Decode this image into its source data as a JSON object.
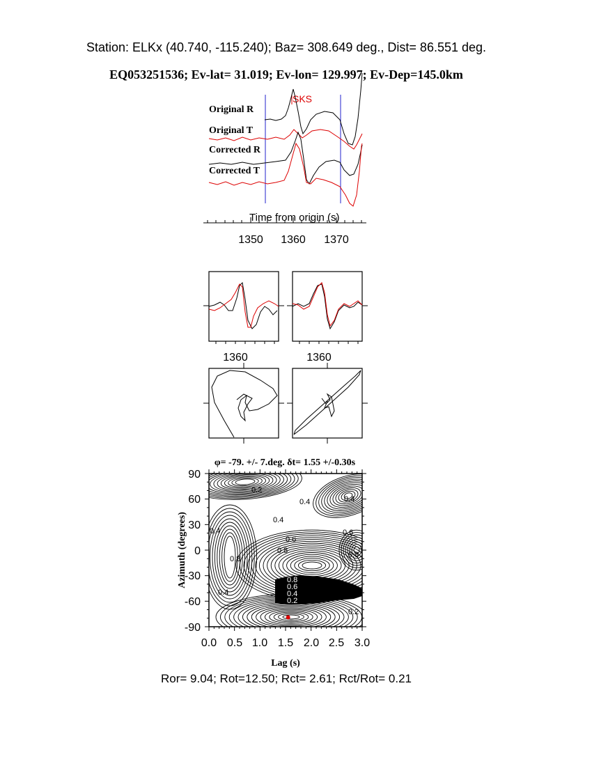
{
  "header": {
    "line1": "Station: ELKx (40.740, -115.240); Baz=  308.649 deg., Dist=   86.551 deg.",
    "line2": "EQ053251536; Ev-lat=  31.019; Ev-lon= 129.997; Ev-Dep=145.0km"
  },
  "footer": {
    "text": "Ror= 9.04; Rot=12.50; Rct= 2.61; Rct/Rot= 0.21"
  },
  "colors": {
    "radial": "#000000",
    "transverse": "#dd0000",
    "window": "#2222cc",
    "phase": "#dd0000",
    "best_fit_marker": "#dd0000"
  },
  "chart_data": [
    {
      "type": "line",
      "panel": "waveforms",
      "phase_label": "SKS",
      "trace_labels": [
        "Original R",
        "Original T",
        "Corrected R",
        "Corrected T"
      ],
      "xlabel": "Time from origin (s)",
      "x_ticks": [
        "1350",
        "1360",
        "1370"
      ],
      "xlim": [
        1340,
        1378
      ],
      "analysis_window": [
        1353.5,
        1371.5
      ],
      "phase_time": 1360.8
    },
    {
      "type": "line",
      "panel": "component-comparison",
      "subplots": [
        {
          "name": "original",
          "x_tick": "1360"
        },
        {
          "name": "corrected",
          "x_tick": "1360"
        }
      ]
    },
    {
      "type": "scatter",
      "panel": "particle-motion",
      "subplots": [
        {
          "name": "original"
        },
        {
          "name": "corrected"
        }
      ]
    },
    {
      "type": "heatmap",
      "panel": "splitting-grid",
      "title": "φ= -79. +/- 7.deg. δt= 1.55 +/-0.30s",
      "xlabel": "Lag (s)",
      "ylabel": "Azimuth (degrees)",
      "x_ticks": [
        "0.0",
        "0.5",
        "1.0",
        "1.5",
        "2.0",
        "2.5",
        "3.0"
      ],
      "y_ticks": [
        "90",
        "60",
        "30",
        "0",
        "-30",
        "-60",
        "-90"
      ],
      "xlim": [
        0,
        3
      ],
      "ylim": [
        -90,
        90
      ],
      "best_fit": {
        "lag": 1.55,
        "azimuth": -79
      },
      "contour_labels": [
        "0.2",
        "0.4",
        "0.4",
        "0.4",
        "0.6",
        "0.8",
        "0.6",
        "0.8",
        "0.4",
        "0.8",
        "0.8",
        "0.6",
        "0.4",
        "0.2",
        "0.2",
        "0.4"
      ]
    }
  ]
}
